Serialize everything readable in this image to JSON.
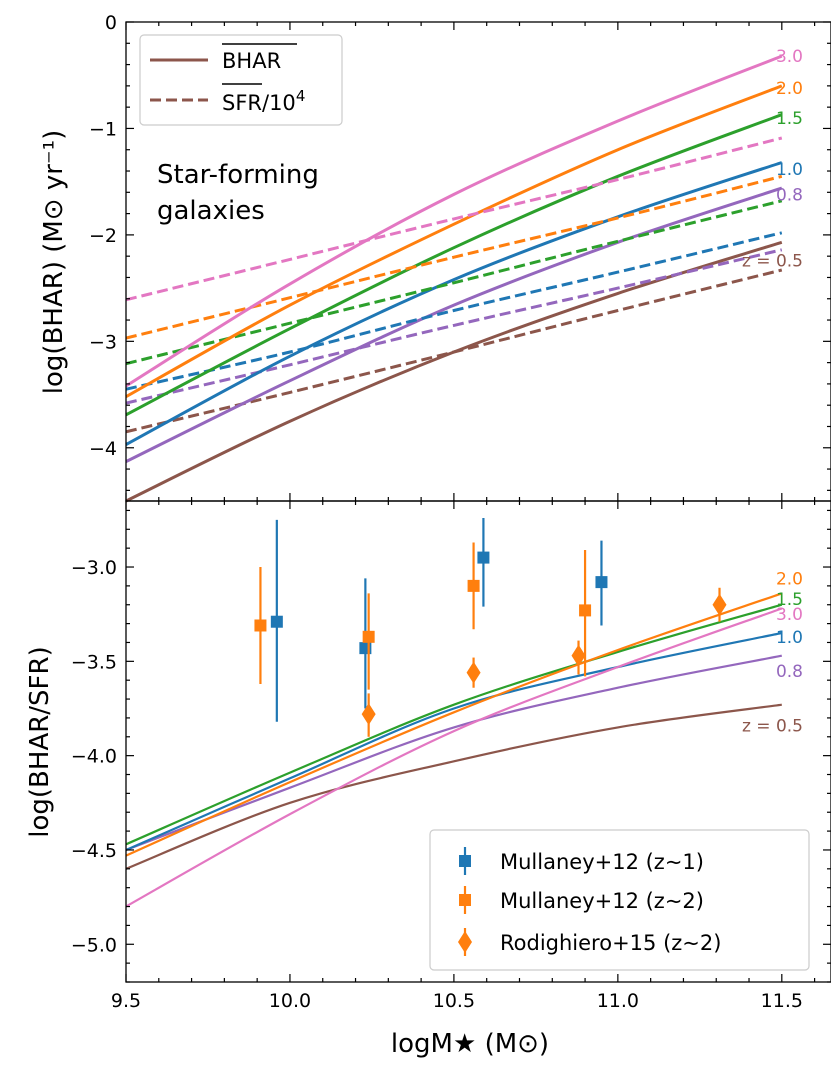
{
  "colors": {
    "0.5": "#8c564b",
    "0.8": "#9467bd",
    "1.0": "#1f77b4",
    "1.5": "#2ca02c",
    "2.0": "#ff7f0e",
    "3.0": "#e377c2",
    "frame": "#000000"
  },
  "chart_data": [
    {
      "type": "line",
      "panel": "top",
      "xlim": [
        9.5,
        11.65
      ],
      "ylim": [
        -4.5,
        0
      ],
      "ylabel": "log(BHAR) (M⊙ yr⁻¹)",
      "xticks": [
        9.5,
        10.0,
        10.5,
        11.0,
        11.5
      ],
      "yticks": [
        0,
        -1,
        -2,
        -3,
        -4
      ],
      "ytick_labels": [
        "0",
        "−1",
        "−2",
        "−3",
        "−4"
      ],
      "annotation": [
        "Star-forming",
        "galaxies"
      ],
      "legend": {
        "placement": "top-left",
        "entries": [
          {
            "label": "BHAR",
            "style": "solid"
          },
          {
            "label": "SFR/10",
            "sup": "4",
            "style": "dashed"
          }
        ]
      },
      "series": [
        {
          "z": "0.5",
          "label": "z = 0.5",
          "x": [
            9.5,
            10.0,
            10.5,
            11.0,
            11.5
          ],
          "bhar": [
            -4.5,
            -3.75,
            -3.1,
            -2.55,
            -2.07
          ],
          "sfr": [
            -3.85,
            -3.48,
            -3.1,
            -2.71,
            -2.33
          ]
        },
        {
          "z": "0.8",
          "label": "0.8",
          "x": [
            9.5,
            10.0,
            10.5,
            11.0,
            11.5
          ],
          "bhar": [
            -4.13,
            -3.37,
            -2.66,
            -2.07,
            -1.56
          ],
          "sfr": [
            -3.58,
            -3.22,
            -2.85,
            -2.5,
            -2.14
          ]
        },
        {
          "z": "1.0",
          "label": "1.0",
          "x": [
            9.5,
            10.0,
            10.5,
            11.0,
            11.5
          ],
          "bhar": [
            -3.97,
            -3.14,
            -2.42,
            -1.83,
            -1.32
          ],
          "sfr": [
            -3.45,
            -3.1,
            -2.71,
            -2.35,
            -1.98
          ]
        },
        {
          "z": "1.5",
          "label": "1.5",
          "x": [
            9.5,
            10.0,
            10.5,
            11.0,
            11.5
          ],
          "bhar": [
            -3.69,
            -2.88,
            -2.12,
            -1.45,
            -0.87
          ],
          "sfr": [
            -3.21,
            -2.83,
            -2.45,
            -2.06,
            -1.68
          ]
        },
        {
          "z": "2.0",
          "label": "2.0",
          "x": [
            9.5,
            10.0,
            10.5,
            11.0,
            11.5
          ],
          "bhar": [
            -3.52,
            -2.66,
            -1.9,
            -1.2,
            -0.6
          ],
          "sfr": [
            -2.97,
            -2.59,
            -2.21,
            -1.84,
            -1.45
          ]
        },
        {
          "z": "3.0",
          "label": "3.0",
          "x": [
            9.5,
            10.0,
            10.5,
            11.0,
            11.5
          ],
          "bhar": [
            -3.42,
            -2.46,
            -1.62,
            -0.93,
            -0.32
          ],
          "sfr": [
            -2.61,
            -2.23,
            -1.85,
            -1.48,
            -1.09
          ]
        }
      ]
    },
    {
      "type": "line",
      "panel": "bottom",
      "xlim": [
        9.5,
        11.65
      ],
      "ylim": [
        -5.2,
        -2.65
      ],
      "xlabel": "logM★ (M⊙)",
      "ylabel": "log(BHAR/SFR)",
      "xticks": [
        9.5,
        10.0,
        10.5,
        11.0,
        11.5
      ],
      "xtick_labels": [
        "9.5",
        "10.0",
        "10.5",
        "11.0",
        "11.5"
      ],
      "yticks": [
        -3.0,
        -3.5,
        -4.0,
        -4.5,
        -5.0
      ],
      "ytick_labels": [
        "−3.0",
        "−3.5",
        "−4.0",
        "−4.5",
        "−5.0"
      ],
      "legend": {
        "placement": "bottom-right",
        "entries": [
          {
            "label": "Mullaney+12 (z∼1)",
            "marker": "square",
            "z": "1.0"
          },
          {
            "label": "Mullaney+12 (z∼2)",
            "marker": "square",
            "z": "2.0"
          },
          {
            "label": "Rodighiero+15 (z∼2)",
            "marker": "diamond",
            "z": "2.0"
          }
        ]
      },
      "series": [
        {
          "z": "0.5",
          "label": "z = 0.5",
          "x": [
            9.5,
            10.0,
            10.5,
            11.0,
            11.5
          ],
          "y": [
            -4.6,
            -4.25,
            -4.03,
            -3.85,
            -3.73
          ]
        },
        {
          "z": "0.8",
          "label": "0.8",
          "x": [
            9.5,
            10.0,
            10.5,
            11.0,
            11.5
          ],
          "y": [
            -4.5,
            -4.17,
            -3.85,
            -3.64,
            -3.47
          ]
        },
        {
          "z": "1.0",
          "label": "1.0",
          "x": [
            9.5,
            10.0,
            10.5,
            11.0,
            11.5
          ],
          "y": [
            -4.5,
            -4.12,
            -3.75,
            -3.53,
            -3.35
          ]
        },
        {
          "z": "1.5",
          "label": "1.5",
          "x": [
            9.5,
            10.0,
            10.5,
            11.0,
            11.5
          ],
          "y": [
            -4.47,
            -4.09,
            -3.73,
            -3.45,
            -3.2
          ]
        },
        {
          "z": "2.0",
          "label": "2.0",
          "x": [
            9.5,
            10.0,
            10.5,
            11.0,
            11.5
          ],
          "y": [
            -4.53,
            -4.14,
            -3.77,
            -3.44,
            -3.14
          ]
        },
        {
          "z": "3.0",
          "label": "3.0",
          "x": [
            9.5,
            10.0,
            10.5,
            11.0,
            11.5
          ],
          "y": [
            -4.8,
            -4.31,
            -3.87,
            -3.53,
            -3.22
          ]
        }
      ],
      "points": [
        {
          "set": "Mullaney+12 (z∼1)",
          "marker": "square",
          "z": "1.0",
          "data": [
            {
              "x": 9.96,
              "y": -3.29,
              "lo": -3.82,
              "hi": -2.75
            },
            {
              "x": 10.23,
              "y": -3.43,
              "lo": -3.75,
              "hi": -3.06
            },
            {
              "x": 10.59,
              "y": -2.95,
              "lo": -3.21,
              "hi": -2.74
            },
            {
              "x": 10.95,
              "y": -3.08,
              "lo": -3.31,
              "hi": -2.86
            }
          ]
        },
        {
          "set": "Mullaney+12 (z∼2)",
          "marker": "square",
          "z": "2.0",
          "data": [
            {
              "x": 9.91,
              "y": -3.31,
              "lo": -3.62,
              "hi": -3.0
            },
            {
              "x": 10.24,
              "y": -3.37,
              "lo": -3.65,
              "hi": -3.14
            },
            {
              "x": 10.56,
              "y": -3.1,
              "lo": -3.33,
              "hi": -2.87
            },
            {
              "x": 10.9,
              "y": -3.23,
              "lo": -3.58,
              "hi": -2.91
            }
          ]
        },
        {
          "set": "Rodighiero+15 (z∼2)",
          "marker": "diamond",
          "z": "2.0",
          "data": [
            {
              "x": 10.24,
              "y": -3.78,
              "lo": -3.9,
              "hi": -3.67
            },
            {
              "x": 10.56,
              "y": -3.56,
              "lo": -3.64,
              "hi": -3.48
            },
            {
              "x": 10.88,
              "y": -3.47,
              "lo": -3.57,
              "hi": -3.39
            },
            {
              "x": 11.31,
              "y": -3.2,
              "lo": -3.29,
              "hi": -3.11
            }
          ]
        }
      ]
    }
  ]
}
